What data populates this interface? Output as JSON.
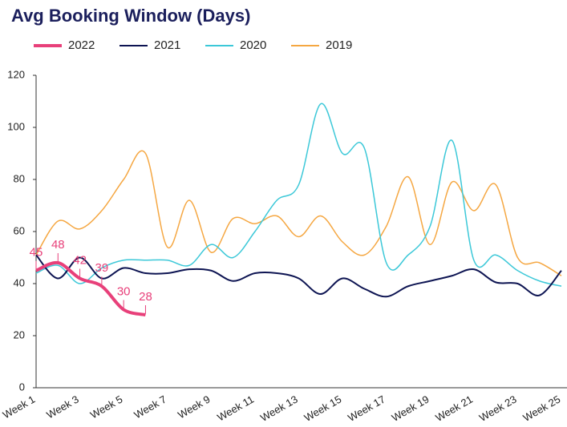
{
  "chart_data": {
    "type": "line",
    "title": "Avg Booking Window (Days)",
    "categories": [
      "Week 1",
      null,
      "Week 3",
      null,
      "Week 5",
      null,
      "Week 7",
      null,
      "Week 9",
      null,
      "Week 11",
      null,
      "Week 13",
      null,
      "Week 15",
      null,
      "Week 17",
      null,
      "Week 19",
      null,
      "Week 21",
      null,
      "Week 23",
      null,
      "Week 25"
    ],
    "series": [
      {
        "name": "2022",
        "color": "#e8407a",
        "values": [
          45,
          48,
          42,
          39,
          30,
          28,
          null,
          null,
          null,
          null,
          null,
          null,
          null,
          null,
          null,
          null,
          null,
          null,
          null,
          null,
          null,
          null,
          null,
          null,
          null
        ]
      },
      {
        "name": "2021",
        "color": "#0d1452",
        "values": [
          51,
          42,
          50,
          42,
          46,
          44,
          44,
          45.5,
          45,
          41,
          44,
          44,
          42,
          36,
          42,
          38,
          35,
          39,
          41,
          43,
          45.5,
          40.5,
          40,
          35.5,
          45
        ]
      },
      {
        "name": "2020",
        "color": "#3cc8d8",
        "values": [
          44,
          47,
          40,
          46,
          49,
          49,
          49,
          47,
          55,
          50,
          60,
          72,
          78,
          109,
          90,
          92,
          48,
          51,
          62,
          95,
          49,
          51,
          45,
          41,
          39
        ]
      },
      {
        "name": "2019",
        "color": "#f5a742",
        "values": [
          51,
          64,
          61,
          68,
          80,
          90,
          54,
          72,
          52,
          65,
          63,
          66,
          58,
          66,
          56,
          51,
          62,
          81,
          55,
          79,
          68,
          78,
          50,
          48,
          43
        ]
      }
    ],
    "ylim": [
      0,
      120
    ],
    "yticks": [
      0,
      20,
      40,
      60,
      80,
      100,
      120
    ]
  }
}
